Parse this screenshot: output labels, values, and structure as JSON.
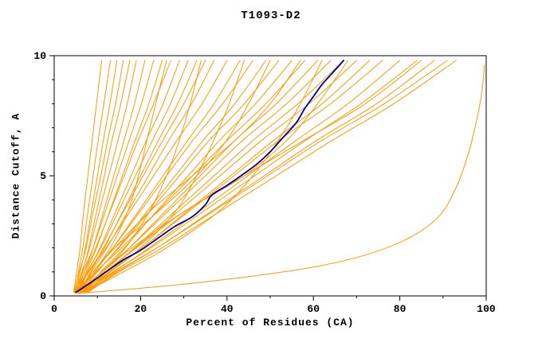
{
  "title": "T1093-D2",
  "chart_data": {
    "type": "line",
    "title": "T1093-D2",
    "xlabel": "Percent of Residues (CA)",
    "ylabel": "Distance Cutoff, A",
    "xlim": [
      0,
      100
    ],
    "ylim": [
      0,
      10
    ],
    "xticks": [
      0,
      20,
      40,
      60,
      80,
      100
    ],
    "xminor_step": 10,
    "yticks": [
      0,
      5,
      10
    ],
    "yminor_step": 1,
    "grid": false,
    "legend": "none",
    "colors": {
      "model_line": "#ff9800",
      "highlight_line": "#000099",
      "axis": "#000000",
      "background": "#ffffff"
    },
    "y_levels": [
      0.15,
      1,
      2,
      3.5,
      5,
      6.5,
      8,
      9.8
    ],
    "series_orange_x": [
      [
        4.5,
        5.2,
        6.0,
        6.8,
        7.8,
        8.8,
        9.8,
        11.0
      ],
      [
        4.8,
        5.6,
        6.6,
        7.8,
        9.0,
        10.2,
        11.5,
        13.0
      ],
      [
        5.0,
        6.0,
        7.2,
        8.6,
        10.0,
        11.4,
        12.9,
        14.5
      ],
      [
        4.6,
        5.8,
        7.4,
        9.0,
        10.8,
        12.4,
        14.2,
        16.0
      ],
      [
        5.2,
        6.5,
        8.0,
        9.8,
        11.6,
        13.4,
        15.4,
        17.5
      ],
      [
        4.9,
        6.4,
        8.2,
        10.4,
        12.6,
        14.8,
        16.9,
        19.0
      ],
      [
        5.4,
        7.0,
        9.0,
        11.4,
        13.8,
        16.2,
        18.6,
        21.0
      ],
      [
        4.7,
        6.6,
        9.0,
        11.8,
        14.6,
        17.4,
        20.2,
        23.0
      ],
      [
        5.6,
        7.4,
        9.8,
        12.8,
        15.8,
        18.8,
        21.9,
        25.0
      ],
      [
        5.0,
        7.0,
        9.6,
        12.9,
        16.2,
        19.5,
        23.0,
        27.0
      ],
      [
        5.8,
        7.8,
        10.6,
        14.2,
        17.8,
        21.4,
        25.2,
        29.0
      ],
      [
        5.2,
        7.6,
        10.8,
        14.8,
        18.8,
        22.8,
        26.9,
        31.0
      ],
      [
        6.0,
        8.4,
        11.6,
        15.8,
        20.0,
        24.2,
        28.6,
        33.0
      ],
      [
        5.4,
        8.0,
        11.4,
        16.0,
        20.6,
        25.2,
        30.0,
        35.0
      ],
      [
        5.7,
        8.6,
        12.2,
        17.0,
        21.8,
        26.6,
        31.8,
        37.0
      ],
      [
        5.0,
        8.0,
        12.0,
        17.5,
        23.0,
        28.5,
        34.2,
        40.0
      ],
      [
        6.2,
        9.4,
        13.6,
        19.4,
        25.2,
        31.0,
        37.0,
        43.0
      ],
      [
        5.5,
        9.0,
        13.6,
        19.8,
        26.0,
        32.2,
        39.0,
        46.0
      ],
      [
        6.4,
        10.0,
        14.8,
        21.4,
        28.0,
        34.6,
        41.8,
        49.0
      ],
      [
        5.8,
        9.8,
        15.0,
        22.0,
        29.0,
        36.0,
        44.0,
        52.0
      ],
      [
        6.6,
        10.8,
        16.2,
        23.6,
        31.0,
        38.4,
        46.6,
        55.0
      ],
      [
        5.2,
        9.6,
        15.6,
        23.8,
        32.0,
        40.2,
        49.0,
        58.0
      ],
      [
        6.8,
        11.4,
        17.4,
        25.6,
        33.8,
        42.0,
        51.4,
        61.0
      ],
      [
        6.0,
        11.0,
        17.4,
        26.2,
        35.0,
        43.8,
        53.8,
        64.0
      ],
      [
        7.0,
        12.0,
        18.6,
        27.8,
        37.0,
        46.2,
        56.4,
        67.0
      ],
      [
        6.2,
        11.8,
        18.8,
        28.6,
        38.4,
        48.2,
        59.0,
        70.0
      ],
      [
        7.2,
        13.0,
        20.4,
        30.6,
        40.8,
        51.0,
        62.0,
        73.0
      ],
      [
        6.5,
        12.6,
        20.4,
        31.0,
        41.6,
        52.2,
        64.0,
        76.0
      ],
      [
        7.4,
        13.8,
        22.0,
        33.4,
        44.8,
        56.2,
        68.0,
        80.0
      ],
      [
        6.8,
        13.6,
        22.4,
        34.4,
        46.4,
        58.4,
        71.0,
        84.0
      ],
      [
        7.6,
        14.6,
        23.8,
        36.2,
        48.6,
        61.0,
        74.6,
        88.0
      ],
      [
        7.0,
        14.2,
        23.8,
        36.6,
        49.4,
        62.2,
        76.4,
        91.0
      ],
      [
        7.8,
        15.0,
        25.0,
        38.2,
        51.4,
        64.6,
        78.6,
        93.0
      ],
      [
        5.0,
        9.0,
        13.0,
        17.0,
        19.5,
        21.5,
        23.5,
        26.0
      ],
      [
        6.0,
        13.0,
        20.0,
        28.0,
        33.0,
        37.0,
        40.5,
        44.0
      ],
      [
        7.0,
        16.0,
        26.0,
        38.0,
        46.0,
        52.0,
        57.0,
        62.0
      ],
      [
        5.5,
        11.0,
        16.5,
        22.0,
        26.0,
        29.0,
        31.5,
        34.0
      ],
      [
        6.0,
        9.0,
        14.0,
        24.0,
        33.0,
        40.0,
        45.0,
        50.0
      ],
      [
        6.5,
        11.0,
        18.0,
        30.0,
        44.0,
        54.0,
        61.0,
        68.0
      ],
      [
        7.0,
        12.0,
        19.0,
        30.0,
        44.0,
        58.0,
        72.0,
        85.0
      ],
      [
        6.0,
        9.0,
        14.0,
        22.0,
        32.0,
        42.0,
        50.0,
        57.0
      ]
    ],
    "series_outlier": [
      [
        5,
        0.1
      ],
      [
        25,
        0.4
      ],
      [
        45,
        0.8
      ],
      [
        60,
        1.2
      ],
      [
        72,
        1.7
      ],
      [
        82,
        2.4
      ],
      [
        89,
        3.3
      ],
      [
        93,
        4.5
      ],
      [
        96,
        6.0
      ],
      [
        98,
        7.5
      ],
      [
        99,
        8.5
      ],
      [
        99.6,
        9.6
      ]
    ],
    "series_blue": [
      [
        5,
        0.15
      ],
      [
        8,
        0.5
      ],
      [
        12,
        1.0
      ],
      [
        16,
        1.5
      ],
      [
        20,
        1.9
      ],
      [
        24,
        2.4
      ],
      [
        28,
        2.9
      ],
      [
        32,
        3.3
      ],
      [
        35,
        3.8
      ],
      [
        36.5,
        4.2
      ],
      [
        40,
        4.6
      ],
      [
        44,
        5.1
      ],
      [
        47,
        5.5
      ],
      [
        50,
        6.0
      ],
      [
        53,
        6.6
      ],
      [
        56,
        7.2
      ],
      [
        58,
        7.8
      ],
      [
        60,
        8.3
      ],
      [
        62,
        8.8
      ],
      [
        64,
        9.2
      ],
      [
        66,
        9.6
      ],
      [
        67,
        9.8
      ]
    ]
  }
}
